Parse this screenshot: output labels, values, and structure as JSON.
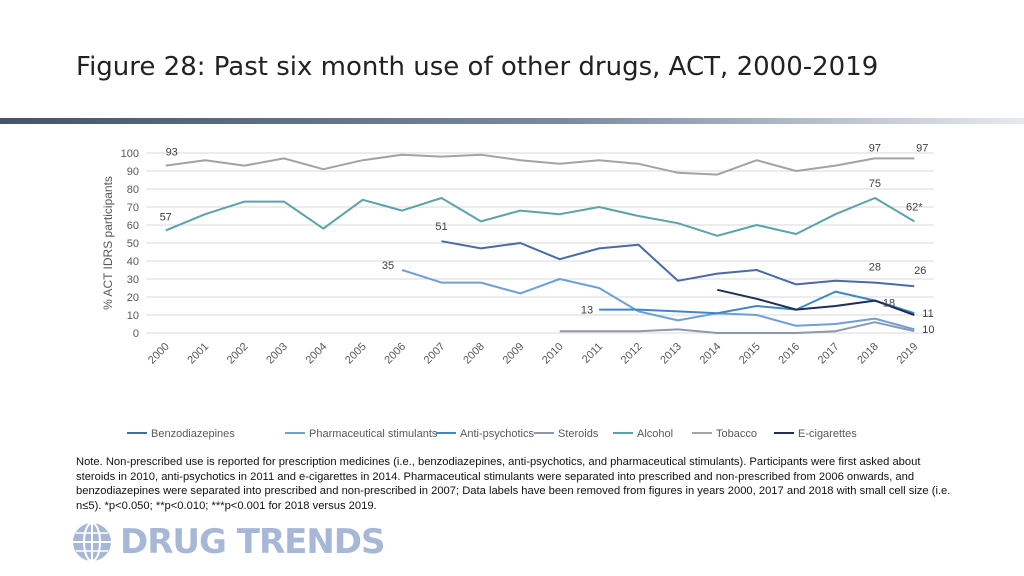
{
  "title": "Figure 28: Past six month use of other drugs, ACT, 2000-2019",
  "note": "Note. Non-prescribed use is reported for prescription medicines (i.e., benzodiazepines, anti-psychotics, and pharmaceutical stimulants). Participants were first asked about steroids in 2010, anti-psychotics in 2011 and e-cigarettes in 2014. Pharmaceutical stimulants were separated into prescribed and non-prescribed from 2006 onwards, and benzodiazepines were separated into prescribed and non-prescribed in 2007; Data labels have been removed from figures in years 2000, 2017 and 2018 with small cell size (i.e. n≤5). *p<0.050; **p<0.010; ***p<0.001 for 2018 versus 2019.",
  "logo_text": "DRUG TRENDS",
  "chart_data": {
    "type": "line",
    "ylabel": "% ACT IDRS participants",
    "xlabel": "",
    "ylim": [
      0,
      100
    ],
    "yticks": [
      0,
      10,
      20,
      30,
      40,
      50,
      60,
      70,
      80,
      90,
      100
    ],
    "grid": true,
    "legend": "bottom",
    "categories": [
      "2000",
      "2001",
      "2002",
      "2003",
      "2004",
      "2005",
      "2006",
      "2007",
      "2008",
      "2009",
      "2010",
      "2011",
      "2012",
      "2013",
      "2014",
      "2015",
      "2016",
      "2017",
      "2018",
      "2019"
    ],
    "series": [
      {
        "name": "Benzodiazepines",
        "color": "#4a6aa5",
        "values": [
          null,
          null,
          null,
          null,
          null,
          null,
          null,
          51,
          47,
          50,
          41,
          47,
          49,
          29,
          33,
          35,
          27,
          29,
          28,
          26
        ]
      },
      {
        "name": "Pharmaceutical stimulants",
        "color": "#6fa0d4",
        "values": [
          null,
          null,
          null,
          null,
          null,
          null,
          35,
          28,
          28,
          22,
          30,
          25,
          12,
          7,
          11,
          10,
          4,
          5,
          8,
          2
        ]
      },
      {
        "name": "Anti-psychotics",
        "color": "#3f86c6",
        "values": [
          null,
          null,
          null,
          null,
          null,
          null,
          null,
          null,
          null,
          null,
          null,
          13,
          13,
          12,
          11,
          15,
          13,
          23,
          18,
          11
        ]
      },
      {
        "name": "Steroids",
        "color": "#8c98b0",
        "values": [
          null,
          null,
          null,
          null,
          null,
          null,
          null,
          null,
          null,
          null,
          1,
          1,
          1,
          2,
          0,
          0,
          0,
          1,
          6,
          1
        ]
      },
      {
        "name": "Alcohol",
        "color": "#5aa3a8",
        "values": [
          57,
          66,
          73,
          73,
          58,
          74,
          68,
          75,
          62,
          68,
          66,
          70,
          65,
          61,
          54,
          60,
          55,
          66,
          75,
          62
        ]
      },
      {
        "name": "Tobacco",
        "color": "#a3a3a3",
        "values": [
          93,
          96,
          93,
          97,
          91,
          96,
          99,
          98,
          99,
          96,
          94,
          96,
          94,
          89,
          88,
          96,
          90,
          93,
          97,
          97
        ]
      },
      {
        "name": "E-cigarettes",
        "color": "#1f2f55",
        "values": [
          null,
          null,
          null,
          null,
          null,
          null,
          null,
          null,
          null,
          null,
          null,
          null,
          null,
          null,
          24,
          19,
          13,
          15,
          18,
          10
        ]
      }
    ],
    "data_labels": [
      {
        "series": "Tobacco",
        "category": "2000",
        "text": "93"
      },
      {
        "series": "Tobacco",
        "category": "2018",
        "text": "97"
      },
      {
        "series": "Tobacco",
        "category": "2019",
        "text": "97"
      },
      {
        "series": "Alcohol",
        "category": "2000",
        "text": "57"
      },
      {
        "series": "Alcohol",
        "category": "2018",
        "text": "75"
      },
      {
        "series": "Alcohol",
        "category": "2019",
        "text": "62*"
      },
      {
        "series": "Benzodiazepines",
        "category": "2007",
        "text": "51"
      },
      {
        "series": "Benzodiazepines",
        "category": "2018",
        "text": "28"
      },
      {
        "series": "Benzodiazepines",
        "category": "2019",
        "text": "26"
      },
      {
        "series": "Pharmaceutical stimulants",
        "category": "2006",
        "text": "35"
      },
      {
        "series": "Anti-psychotics",
        "category": "2011",
        "text": "13"
      },
      {
        "series": "E-cigarettes",
        "category": "2018",
        "text": "18"
      },
      {
        "series": "Anti-psychotics",
        "category": "2019",
        "text": "11"
      },
      {
        "series": "E-cigarettes",
        "category": "2019",
        "text": "10"
      }
    ]
  }
}
